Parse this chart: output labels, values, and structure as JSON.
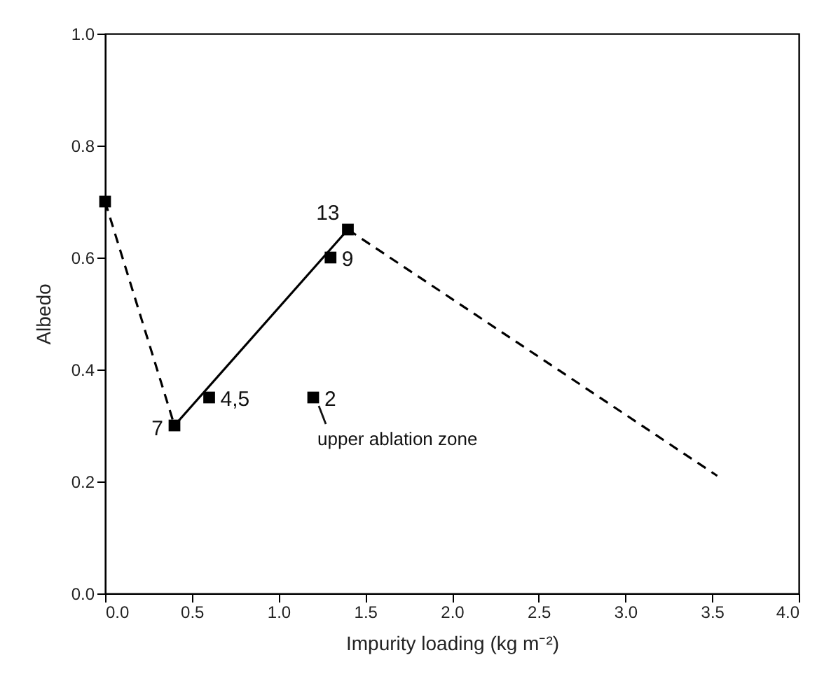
{
  "chart_data": {
    "type": "scatter",
    "xlabel": "Impurity loading (kg m⁻²)",
    "ylabel": "Albedo",
    "xlim": [
      0,
      4
    ],
    "ylim": [
      0,
      1
    ],
    "xticks": [
      {
        "value": 0,
        "label": "0.0"
      },
      {
        "value": 0.5,
        "label": "0.5"
      },
      {
        "value": 1,
        "label": "1.0"
      },
      {
        "value": 1.5,
        "label": "1.5"
      },
      {
        "value": 2,
        "label": "2.0"
      },
      {
        "value": 2.5,
        "label": "2.5"
      },
      {
        "value": 3,
        "label": "3.0"
      },
      {
        "value": 3.5,
        "label": "3.5"
      },
      {
        "value": 4,
        "label": "4.0"
      }
    ],
    "yticks": [
      {
        "value": 0,
        "label": "0.0"
      },
      {
        "value": 0.2,
        "label": "0.2"
      },
      {
        "value": 0.4,
        "label": "0.4"
      },
      {
        "value": 0.6,
        "label": "0.6"
      },
      {
        "value": 0.8,
        "label": "0.8"
      },
      {
        "value": 1,
        "label": "1.0"
      }
    ],
    "grid": false,
    "series": [
      {
        "type": "line",
        "line_style": "dashed",
        "marker": "none",
        "color": "#000000",
        "x": [
          0,
          0.4
        ],
        "values": [
          0.7,
          0.3
        ]
      },
      {
        "type": "line",
        "line_style": "solid",
        "marker": "none",
        "color": "#000000",
        "x": [
          0.4,
          1.4
        ],
        "values": [
          0.3,
          0.65
        ]
      },
      {
        "type": "line",
        "line_style": "dashed",
        "marker": "none",
        "color": "#000000",
        "x": [
          1.4,
          3.53
        ],
        "values": [
          0.65,
          0.21
        ]
      },
      {
        "type": "scatter",
        "marker": "square",
        "color": "#000000",
        "x": [
          0,
          0.4,
          0.6,
          1.2,
          1.3,
          1.4
        ],
        "values": [
          0.7,
          0.3,
          0.35,
          0.35,
          0.6,
          0.65
        ]
      }
    ],
    "annotations": [
      {
        "text": "7",
        "x": 0.4,
        "y": 0.3
      },
      {
        "text": "4,5",
        "x": 0.6,
        "y": 0.35
      },
      {
        "text": "2",
        "x": 1.2,
        "y": 0.35
      },
      {
        "text": "9",
        "x": 1.3,
        "y": 0.6
      },
      {
        "text": "13",
        "x": 1.4,
        "y": 0.65
      },
      {
        "text": "upper ablation zone",
        "x": 1.2,
        "y": 0.35
      }
    ]
  }
}
